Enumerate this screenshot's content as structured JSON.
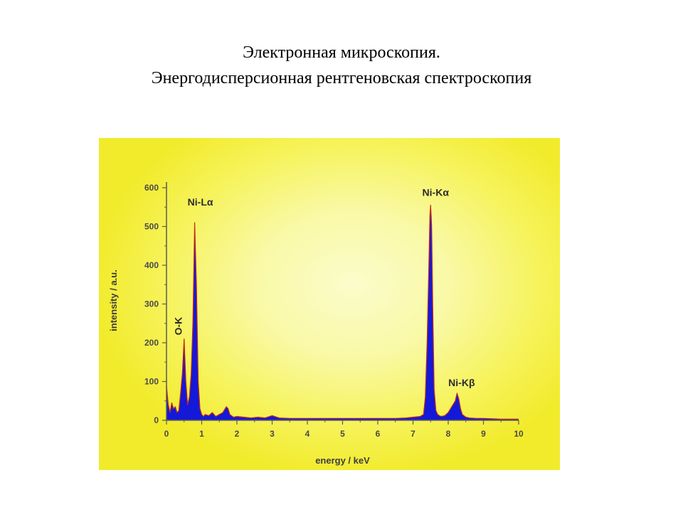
{
  "slide": {
    "title_line1": "Электронная микроскопия.",
    "title_line2": "Энергодисперсионная рентгеновская спектроскопия"
  },
  "chart_data": {
    "type": "area",
    "title": "",
    "xlabel": "energy / keV",
    "ylabel": "intensity / a.u.",
    "xlim": [
      0,
      10
    ],
    "ylim": [
      0,
      600
    ],
    "xticks": [
      "0",
      "1",
      "2",
      "3",
      "4",
      "5",
      "6",
      "7",
      "8",
      "9",
      "10"
    ],
    "yticks": [
      "0",
      "100",
      "200",
      "300",
      "400",
      "500",
      "600"
    ],
    "grid": false,
    "colors": {
      "fill": "#1418d8",
      "outline": "#c42a1a",
      "axis": "#5a5a5a"
    },
    "series": [
      {
        "x": [
          0.0,
          0.05,
          0.1,
          0.15,
          0.2,
          0.25,
          0.3,
          0.35,
          0.4,
          0.45,
          0.5,
          0.55,
          0.6,
          0.65,
          0.7,
          0.75,
          0.8,
          0.85,
          0.9,
          0.95,
          1.0,
          1.05,
          1.1,
          1.2,
          1.3,
          1.4,
          1.5,
          1.6,
          1.7,
          1.75,
          1.8,
          1.9,
          2.0,
          2.2,
          2.4,
          2.6,
          2.8,
          3.0,
          3.2,
          3.5,
          4.0,
          4.5,
          5.0,
          5.5,
          6.0,
          6.5,
          6.8,
          7.0,
          7.2,
          7.3,
          7.35,
          7.4,
          7.45,
          7.48,
          7.5,
          7.53,
          7.56,
          7.6,
          7.65,
          7.7,
          7.75,
          7.8,
          7.9,
          8.0,
          8.1,
          8.2,
          8.25,
          8.3,
          8.35,
          8.4,
          8.5,
          8.6,
          8.8,
          9.0,
          9.5,
          10.0
        ],
        "y": [
          90,
          40,
          20,
          45,
          30,
          35,
          20,
          25,
          70,
          120,
          210,
          100,
          40,
          60,
          120,
          250,
          510,
          350,
          100,
          30,
          15,
          10,
          15,
          12,
          20,
          10,
          15,
          20,
          35,
          30,
          15,
          8,
          10,
          8,
          6,
          8,
          6,
          12,
          6,
          5,
          5,
          5,
          5,
          5,
          5,
          5,
          6,
          8,
          10,
          15,
          60,
          200,
          400,
          530,
          555,
          500,
          300,
          80,
          25,
          15,
          12,
          10,
          12,
          20,
          35,
          50,
          70,
          55,
          30,
          15,
          8,
          6,
          5,
          5,
          3,
          3
        ]
      }
    ],
    "annotations": [
      {
        "text": "Ni-Lα",
        "x": 0.8,
        "y": 510
      },
      {
        "text": "O-K",
        "x": 0.5,
        "y": 210
      },
      {
        "text": "Ni-Kα",
        "x": 7.5,
        "y": 555
      },
      {
        "text": "Ni-Kβ",
        "x": 8.3,
        "y": 70
      }
    ]
  }
}
